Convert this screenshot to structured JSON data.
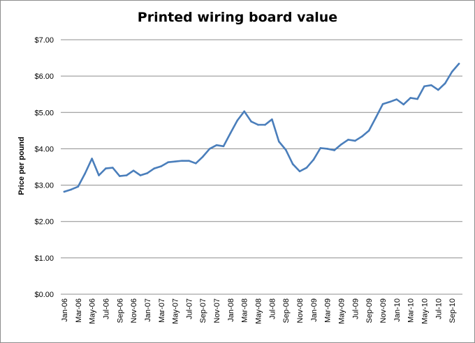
{
  "chart_data": {
    "type": "line",
    "title": "Printed wiring board value",
    "xlabel": "",
    "ylabel": "Price per pound",
    "ylim": [
      0,
      7
    ],
    "yticks": [
      "$0.00",
      "$1.00",
      "$2.00",
      "$3.00",
      "$4.00",
      "$5.00",
      "$6.00",
      "$7.00"
    ],
    "grid": true,
    "legend": "none",
    "line_color": "#4a7ebb",
    "x": [
      "Jan-06",
      "Feb-06",
      "Mar-06",
      "Apr-06",
      "May-06",
      "Jun-06",
      "Jul-06",
      "Aug-06",
      "Sep-06",
      "Oct-06",
      "Nov-06",
      "Dec-06",
      "Jan-07",
      "Feb-07",
      "Mar-07",
      "Apr-07",
      "May-07",
      "Jun-07",
      "Jul-07",
      "Aug-07",
      "Sep-07",
      "Oct-07",
      "Nov-07",
      "Dec-07",
      "Jan-08",
      "Feb-08",
      "Mar-08",
      "Apr-08",
      "May-08",
      "Jun-08",
      "Jul-08",
      "Aug-08",
      "Sep-08",
      "Oct-08",
      "Nov-08",
      "Dec-08",
      "Jan-09",
      "Feb-09",
      "Mar-09",
      "Apr-09",
      "May-09",
      "Jun-09",
      "Jul-09",
      "Aug-09",
      "Sep-09",
      "Oct-09",
      "Nov-09",
      "Dec-09",
      "Jan-10",
      "Feb-10",
      "Mar-10",
      "Apr-10",
      "May-10",
      "Jun-10",
      "Jul-10",
      "Aug-10",
      "Sep-10",
      "Oct-10"
    ],
    "xtick_labels": [
      "Jan-06",
      "Mar-06",
      "May-06",
      "Jul-06",
      "Sep-06",
      "Nov-06",
      "Jan-07",
      "Mar-07",
      "May-07",
      "Jul-07",
      "Sep-07",
      "Nov-07",
      "Jan-08",
      "Mar-08",
      "May-08",
      "Jul-08",
      "Sep-08",
      "Nov-08",
      "Jan-09",
      "Mar-09",
      "May-09",
      "Jul-09",
      "Sep-09",
      "Nov-09",
      "Jan-10",
      "Mar-10",
      "May-10",
      "Jul-10",
      "Sep-10"
    ],
    "series": [
      {
        "values": [
          2.82,
          2.88,
          2.96,
          3.32,
          3.73,
          3.27,
          3.46,
          3.48,
          3.25,
          3.27,
          3.4,
          3.27,
          3.33,
          3.46,
          3.52,
          3.63,
          3.65,
          3.67,
          3.67,
          3.6,
          3.78,
          4.0,
          4.1,
          4.07,
          4.43,
          4.78,
          5.03,
          4.75,
          4.66,
          4.66,
          4.81,
          4.2,
          3.97,
          3.58,
          3.38,
          3.48,
          3.7,
          4.02,
          4.0,
          3.96,
          4.12,
          4.25,
          4.22,
          4.34,
          4.5,
          4.86,
          5.23,
          5.29,
          5.36,
          5.22,
          5.4,
          5.37,
          5.72,
          5.75,
          5.62,
          5.8,
          6.12,
          6.34
        ]
      }
    ]
  }
}
